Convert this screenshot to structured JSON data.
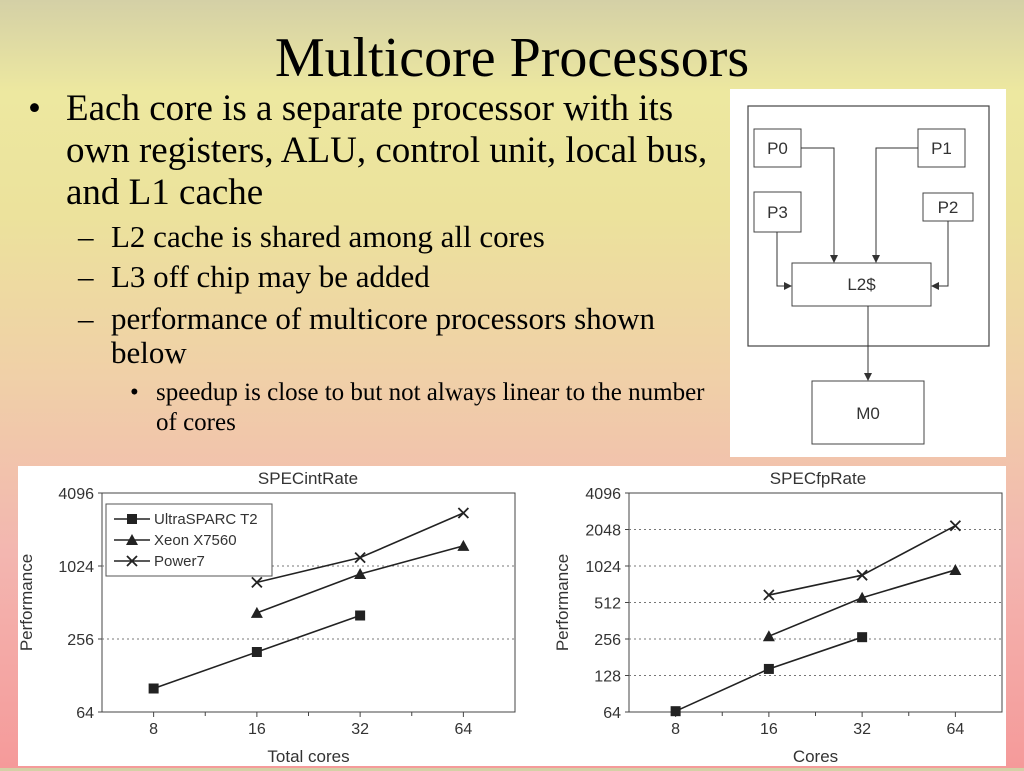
{
  "slide": {
    "title": "Multicore Processors",
    "bullet1": "Each core is a separate processor with its own registers, ALU, control unit, local bus, and L1 cache",
    "sub_bullets": [
      "L2 cache is shared among all cores",
      "L3 off chip may be added",
      "performance of multicore processors shown below"
    ],
    "sub_sub_bullet": "speedup is close to but not always linear to the number of cores",
    "dash_glyph": "–",
    "bullet_glyph": "•"
  },
  "diagram": {
    "processors": [
      "P0",
      "P1",
      "P3",
      "P2"
    ],
    "cache": "L2$",
    "memory": "M0"
  },
  "chart_data": [
    {
      "type": "line",
      "title": "SPECintRate",
      "xlabel": "Total cores",
      "ylabel": "Performance",
      "categories": [
        8,
        16,
        32,
        64
      ],
      "y_scale": "log2",
      "ylim": [
        64,
        4096
      ],
      "yticks": [
        64,
        256,
        1024,
        4096
      ],
      "grid": "horizontal dotted",
      "legend_position": "top-left",
      "series": [
        {
          "name": "UltraSPARC T2",
          "marker": "square",
          "values": [
            100,
            200,
            400,
            null
          ]
        },
        {
          "name": "Xeon X7560",
          "marker": "triangle",
          "values": [
            null,
            420,
            880,
            1500
          ]
        },
        {
          "name": "Power7",
          "marker": "x",
          "values": [
            null,
            750,
            1200,
            2800
          ]
        }
      ]
    },
    {
      "type": "line",
      "title": "SPECfpRate",
      "xlabel": "Cores",
      "ylabel": "Performance",
      "categories": [
        8,
        16,
        32,
        64
      ],
      "y_scale": "log2",
      "ylim": [
        64,
        4096
      ],
      "yticks": [
        64,
        128,
        256,
        512,
        1024,
        2048,
        4096
      ],
      "grid": "horizontal dotted",
      "series": [
        {
          "name": "UltraSPARC T2",
          "marker": "square",
          "values": [
            65,
            145,
            265,
            null
          ]
        },
        {
          "name": "Xeon X7560",
          "marker": "triangle",
          "values": [
            null,
            270,
            560,
            950
          ]
        },
        {
          "name": "Power7",
          "marker": "x",
          "values": [
            null,
            590,
            860,
            2200
          ]
        }
      ]
    }
  ]
}
